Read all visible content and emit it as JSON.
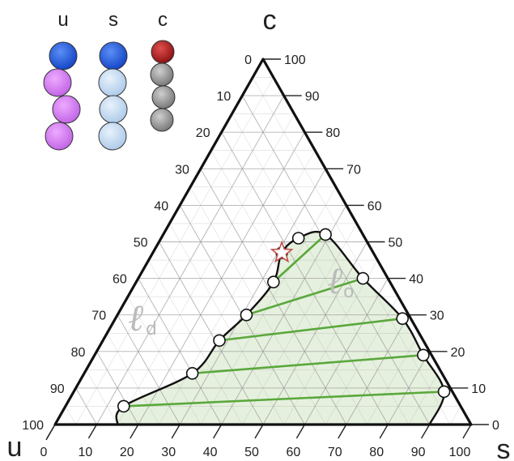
{
  "corners": {
    "top": "c",
    "left": "u",
    "right": "s"
  },
  "phase_labels": [
    {
      "letter": "ℓ",
      "sub": "d"
    },
    {
      "letter": "ℓ",
      "sub": "o"
    }
  ],
  "legend": {
    "headers": [
      "u",
      "s",
      "c"
    ],
    "colors": {
      "head_blue": "#1f5fe0",
      "u_tail": "#d678f0",
      "s_tail": "#c4dcf2",
      "c_head": "#b32020",
      "c_tail": "#9a9a9a"
    }
  },
  "axis_ticks": [
    "0",
    "10",
    "20",
    "30",
    "40",
    "50",
    "60",
    "70",
    "80",
    "90",
    "100"
  ],
  "colors": {
    "region_fill": "#e6f0de",
    "tie_line": "#5aa83c",
    "star": "#c0504d",
    "grid": "#9a9a9a"
  },
  "chart_data": {
    "type": "ternary",
    "components": [
      "u",
      "s",
      "c"
    ],
    "boundary_points": [
      {
        "u": 81,
        "s": 14,
        "c": 5
      },
      {
        "u": 60,
        "s": 26,
        "c": 14
      },
      {
        "u": 49,
        "s": 28,
        "c": 23
      },
      {
        "u": 39,
        "s": 31,
        "c": 30
      },
      {
        "u": 28,
        "s": 33,
        "c": 39
      },
      {
        "u": 22,
        "s": 31,
        "c": 47
      },
      {
        "u": 16,
        "s": 33,
        "c": 51
      },
      {
        "u": 9,
        "s": 39,
        "c": 52
      },
      {
        "u": 6,
        "s": 54,
        "c": 40
      },
      {
        "u": 2,
        "s": 69,
        "c": 29
      },
      {
        "u": 2,
        "s": 79,
        "c": 19
      },
      {
        "u": 2,
        "s": 89,
        "c": 9
      }
    ],
    "tie_lines": [
      {
        "from": {
          "u": 81,
          "s": 14,
          "c": 5
        },
        "to": {
          "u": 2,
          "s": 89,
          "c": 9
        }
      },
      {
        "from": {
          "u": 60,
          "s": 26,
          "c": 14
        },
        "to": {
          "u": 2,
          "s": 79,
          "c": 19
        }
      },
      {
        "from": {
          "u": 49,
          "s": 28,
          "c": 23
        },
        "to": {
          "u": 2,
          "s": 69,
          "c": 29
        }
      },
      {
        "from": {
          "u": 39,
          "s": 31,
          "c": 30
        },
        "to": {
          "u": 6,
          "s": 54,
          "c": 40
        }
      },
      {
        "from": {
          "u": 28,
          "s": 33,
          "c": 39
        },
        "to": {
          "u": 9,
          "s": 39,
          "c": 52
        }
      }
    ],
    "critical_point": {
      "u": 22,
      "s": 31,
      "c": 47
    },
    "ticks": [
      0,
      10,
      20,
      30,
      40,
      50,
      60,
      70,
      80,
      90,
      100
    ]
  }
}
